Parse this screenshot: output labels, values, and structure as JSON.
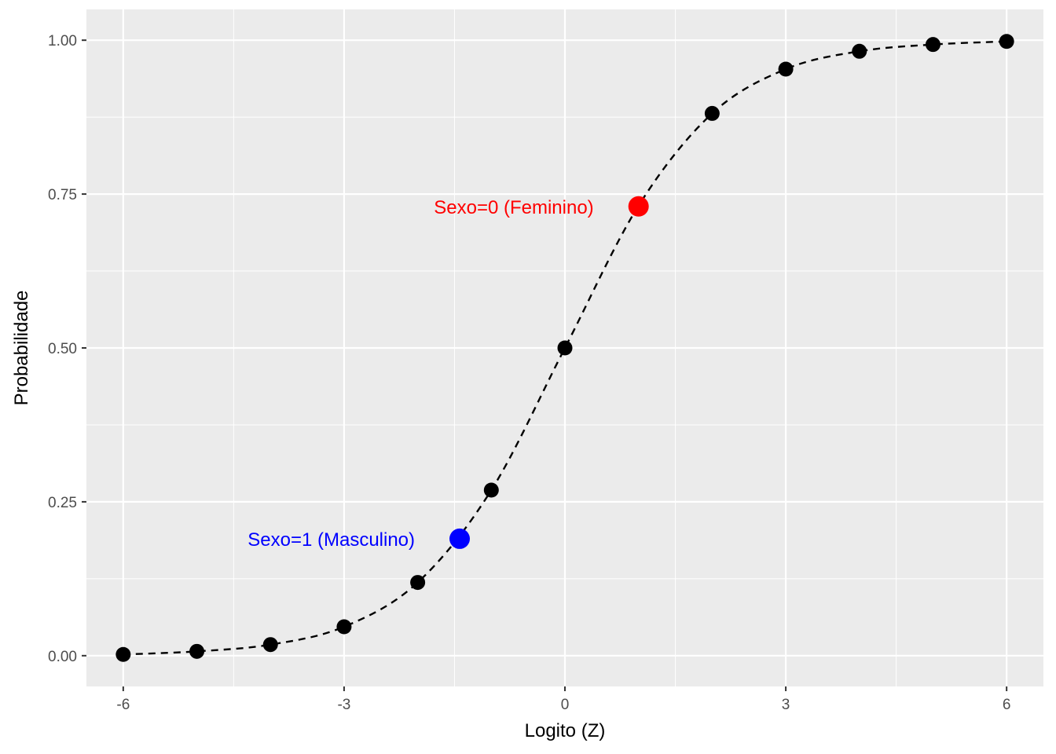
{
  "chart_data": {
    "type": "scatter",
    "title": "",
    "xlabel": "Logito (Z)",
    "ylabel": "Probabilidade",
    "xlim": [
      -6.5,
      6.5
    ],
    "ylim": [
      -0.05,
      1.05
    ],
    "x_ticks": [
      -6,
      -3,
      0,
      3,
      6
    ],
    "x_tick_labels": [
      "-6",
      "-3",
      "0",
      "3",
      "6"
    ],
    "y_ticks": [
      0,
      0.25,
      0.5,
      0.75,
      1
    ],
    "y_tick_labels": [
      "0.00",
      "0.25",
      "0.50",
      "0.75",
      "1.00"
    ],
    "grid": true,
    "series": [
      {
        "line_style": "dashed",
        "color": "#000000",
        "x": [
          -6,
          -5,
          -4,
          -3,
          -2,
          -1,
          0,
          1,
          2,
          3,
          4,
          5,
          6
        ],
        "y": [
          0.002,
          0.007,
          0.018,
          0.047,
          0.119,
          0.269,
          0.5,
          0.731,
          0.881,
          0.953,
          0.982,
          0.993,
          0.998
        ]
      }
    ],
    "highlights": [
      {
        "label": "Sexo=0 (Feminino)",
        "x": 1.0,
        "y": 0.73,
        "color": "#ff0000"
      },
      {
        "label": "Sexo=1 (Masculino)",
        "x": -1.43,
        "y": 0.19,
        "color": "#0000ff"
      }
    ],
    "colors": {
      "panel": "#ebebeb",
      "grid": "#ffffff",
      "tick_text": "#4d4d4d",
      "tick_mark": "#333333"
    }
  }
}
